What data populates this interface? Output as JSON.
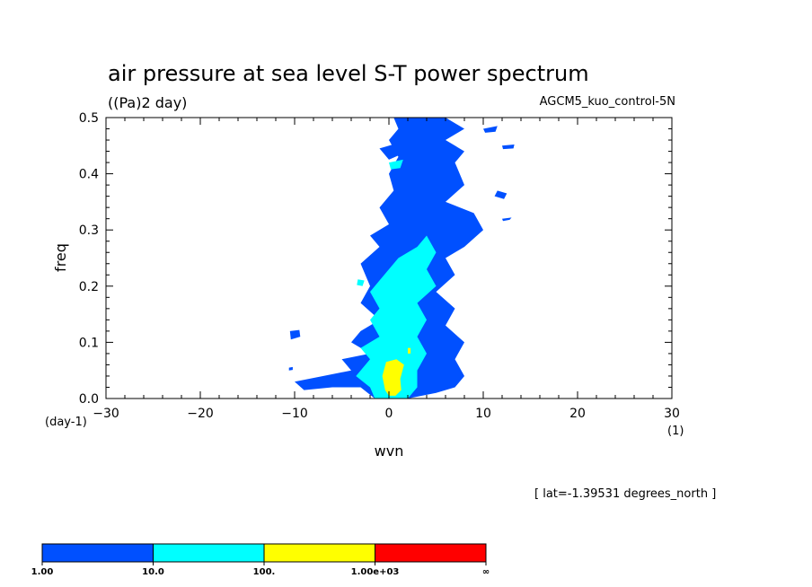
{
  "chart_data": {
    "type": "heatmap",
    "title": "air pressure at sea level S-T power spectrum",
    "units_label": "((Pa)2 day)",
    "dataset": "AGCM5_kuo_control-5N",
    "xlabel": "wvn",
    "xunit": "(1)",
    "ylabel": "freq",
    "yunit": "(day-1)",
    "xlim": [
      -30,
      30
    ],
    "ylim": [
      0,
      0.5
    ],
    "x_ticks": [
      -30,
      -20,
      -10,
      0,
      10,
      20,
      30
    ],
    "x_tick_labels": [
      "−30",
      "−20",
      "−10",
      "0",
      "10",
      "20",
      "30"
    ],
    "y_ticks": [
      0,
      0.1,
      0.2,
      0.3,
      0.4,
      0.5
    ],
    "y_tick_labels": [
      "0.0",
      "0.1",
      "0.2",
      "0.3",
      "0.4",
      "0.5"
    ],
    "note": "[ lat=-1.39531 degrees_north ]",
    "levels": [
      1,
      10,
      100,
      1000
    ],
    "colorbar": {
      "colors": [
        "#0050ff",
        "#00ffff",
        "#ffff00",
        "#ff0000"
      ],
      "labels": [
        "1.00",
        "10.0",
        "100.",
        "1.00e+03",
        "∞"
      ]
    },
    "regions": [
      {
        "level": 1,
        "color": "#0050ff",
        "points": [
          [
            -1.5,
            0.0
          ],
          [
            -3,
            0.02
          ],
          [
            -6,
            0.02
          ],
          [
            -9,
            0.015
          ],
          [
            -10,
            0.03
          ],
          [
            -7,
            0.04
          ],
          [
            -4,
            0.05
          ],
          [
            -5,
            0.07
          ],
          [
            -2,
            0.08
          ],
          [
            -4,
            0.1
          ],
          [
            -3,
            0.12
          ],
          [
            -1,
            0.14
          ],
          [
            -3,
            0.17
          ],
          [
            -2,
            0.2
          ],
          [
            -3,
            0.24
          ],
          [
            -1,
            0.27
          ],
          [
            -2,
            0.29
          ],
          [
            0,
            0.31
          ],
          [
            -1,
            0.34
          ],
          [
            0.5,
            0.37
          ],
          [
            0,
            0.4
          ],
          [
            1,
            0.43
          ],
          [
            0,
            0.46
          ],
          [
            1,
            0.48
          ],
          [
            0.5,
            0.5
          ],
          [
            6,
            0.5
          ],
          [
            8,
            0.48
          ],
          [
            6,
            0.46
          ],
          [
            8,
            0.44
          ],
          [
            7,
            0.42
          ],
          [
            8,
            0.38
          ],
          [
            6,
            0.35
          ],
          [
            9,
            0.33
          ],
          [
            10,
            0.3
          ],
          [
            8,
            0.27
          ],
          [
            6,
            0.25
          ],
          [
            7,
            0.22
          ],
          [
            5,
            0.19
          ],
          [
            7,
            0.16
          ],
          [
            6,
            0.13
          ],
          [
            8,
            0.1
          ],
          [
            7,
            0.07
          ],
          [
            8,
            0.04
          ],
          [
            7,
            0.02
          ],
          [
            5,
            0.01
          ],
          [
            2,
            0.0
          ]
        ]
      },
      {
        "level": 1,
        "color": "#0050ff",
        "points": [
          [
            -1,
            0.445
          ],
          [
            1,
            0.455
          ],
          [
            2,
            0.44
          ],
          [
            0,
            0.425
          ]
        ]
      },
      {
        "level": 1,
        "color": "#0050ff",
        "points": [
          [
            -10.5,
            0.12
          ],
          [
            -9.5,
            0.122
          ],
          [
            -9.4,
            0.11
          ],
          [
            -10.4,
            0.105
          ]
        ]
      },
      {
        "level": 1,
        "color": "#0050ff",
        "points": [
          [
            -10.6,
            0.055
          ],
          [
            -10.2,
            0.056
          ],
          [
            -10.2,
            0.051
          ],
          [
            -10.6,
            0.05
          ]
        ]
      },
      {
        "level": 1,
        "color": "#0050ff",
        "points": [
          [
            11.5,
            0.37
          ],
          [
            12.5,
            0.365
          ],
          [
            12.2,
            0.355
          ],
          [
            11.2,
            0.36
          ]
        ]
      },
      {
        "level": 1,
        "color": "#0050ff",
        "points": [
          [
            12,
            0.45
          ],
          [
            13.3,
            0.452
          ],
          [
            13.2,
            0.445
          ],
          [
            12.1,
            0.444
          ]
        ]
      },
      {
        "level": 1,
        "color": "#0050ff",
        "points": [
          [
            10,
            0.48
          ],
          [
            11.5,
            0.485
          ],
          [
            11.3,
            0.475
          ],
          [
            10.2,
            0.473
          ]
        ]
      },
      {
        "level": 1,
        "color": "#0050ff",
        "points": [
          [
            12,
            0.32
          ],
          [
            13,
            0.322
          ],
          [
            12.8,
            0.318
          ],
          [
            12.1,
            0.316
          ]
        ]
      },
      {
        "level": 10,
        "color": "#00ffff",
        "points": [
          [
            -1.5,
            0.0
          ],
          [
            -2,
            0.02
          ],
          [
            -3.5,
            0.04
          ],
          [
            -2,
            0.07
          ],
          [
            -3,
            0.09
          ],
          [
            -1,
            0.11
          ],
          [
            -2,
            0.14
          ],
          [
            -1,
            0.16
          ],
          [
            -2,
            0.19
          ],
          [
            -1,
            0.21
          ],
          [
            0,
            0.23
          ],
          [
            1,
            0.25
          ],
          [
            3,
            0.27
          ],
          [
            4,
            0.29
          ],
          [
            5,
            0.26
          ],
          [
            4,
            0.23
          ],
          [
            5,
            0.2
          ],
          [
            3,
            0.17
          ],
          [
            4,
            0.14
          ],
          [
            3,
            0.11
          ],
          [
            4,
            0.08
          ],
          [
            3,
            0.05
          ],
          [
            3,
            0.02
          ],
          [
            2,
            0.0
          ]
        ]
      },
      {
        "level": 10,
        "color": "#00ffff",
        "points": [
          [
            0,
            0.42
          ],
          [
            1.5,
            0.425
          ],
          [
            1.2,
            0.41
          ],
          [
            0.2,
            0.408
          ]
        ]
      },
      {
        "level": 10,
        "color": "#00ffff",
        "points": [
          [
            -3.3,
            0.212
          ],
          [
            -2.6,
            0.21
          ],
          [
            -2.8,
            0.2
          ],
          [
            -3.4,
            0.202
          ]
        ]
      },
      {
        "level": 100,
        "color": "#ffff00",
        "points": [
          [
            -0.4,
            0.015
          ],
          [
            -0.7,
            0.04
          ],
          [
            -0.3,
            0.065
          ],
          [
            0.8,
            0.07
          ],
          [
            1.6,
            0.06
          ],
          [
            1.2,
            0.035
          ],
          [
            1.3,
            0.015
          ],
          [
            0.7,
            0.005
          ],
          [
            0,
            0.005
          ]
        ]
      },
      {
        "level": 100,
        "color": "#ffff00",
        "points": [
          [
            2,
            0.09
          ],
          [
            2.3,
            0.09
          ],
          [
            2.3,
            0.08
          ],
          [
            2,
            0.08
          ]
        ]
      }
    ]
  }
}
